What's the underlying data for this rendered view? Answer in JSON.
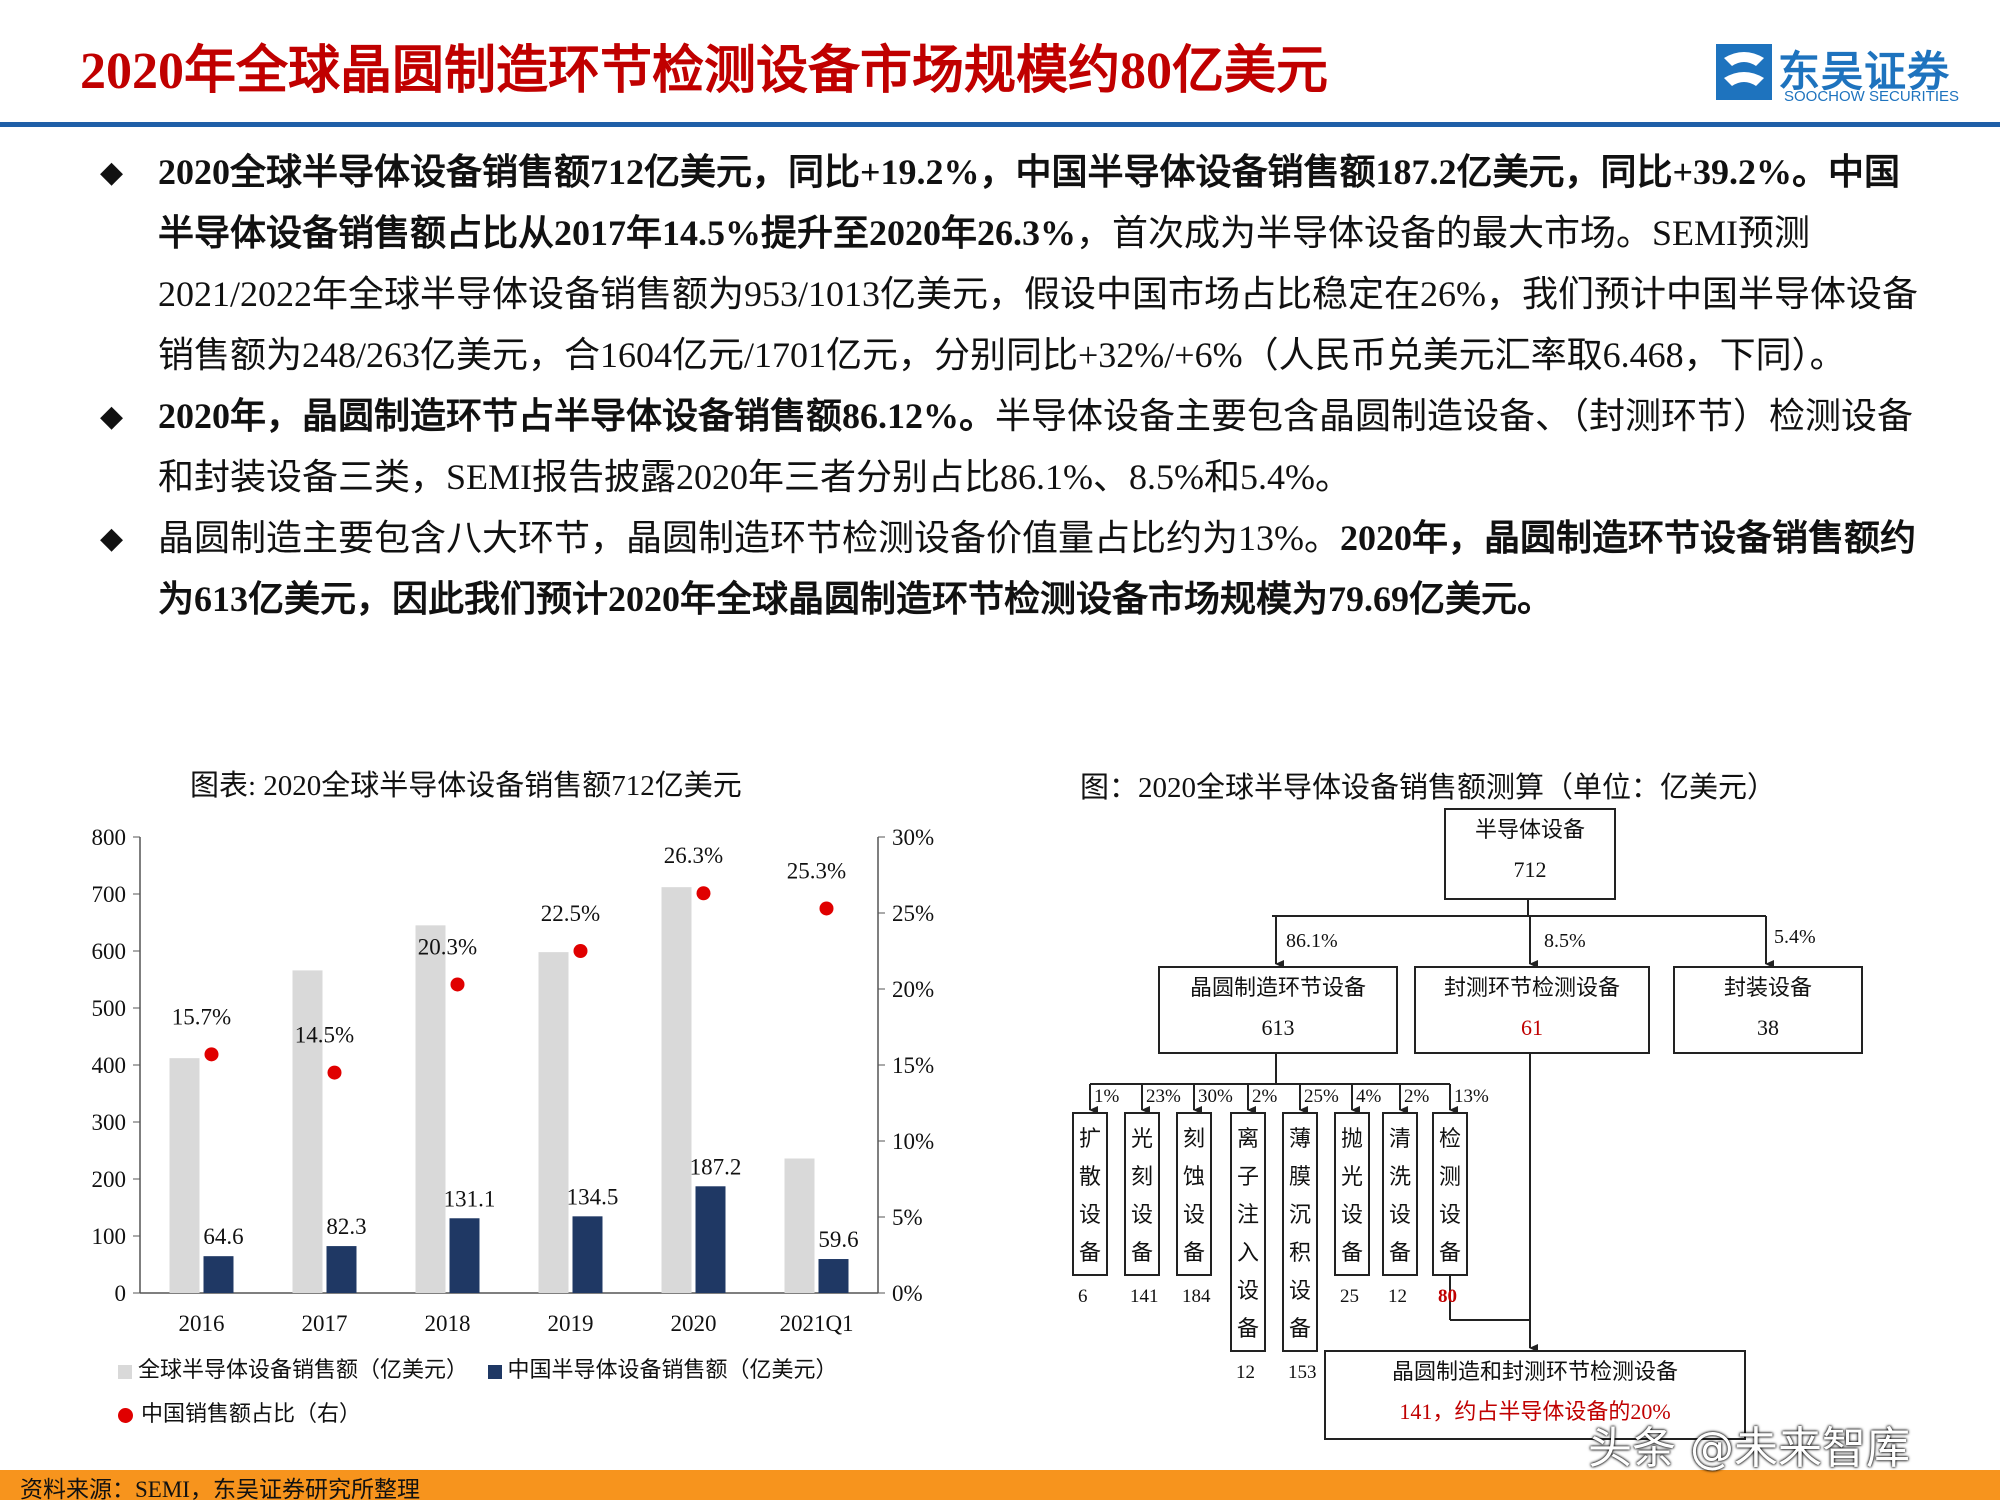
{
  "header": {
    "title": "2020年全球晶圆制造环节检测设备市场规模约80亿美元",
    "logo_cn": "东吴证券",
    "logo_en": "SOOCHOW SECURITIES",
    "logo_mark": "SCS",
    "accent_color": "#1f5fa8",
    "title_color": "#c00000"
  },
  "bullets": [
    {
      "parts": [
        {
          "text": "2020全球半导体设备销售额712亿美元，同比+19.2%，中国半导体设备销售额187.2亿美元，同比+39.2%。中国半导体设备销售额占比从2017年14.5%提升至2020年26.3%",
          "bold": true
        },
        {
          "text": "，首次成为半导体设备的最大市场。SEMI预测2021/2022年全球半导体设备销售额为953/1013亿美元，假设中国市场占比稳定在26%，我们预计中国半导体设备销售额为248/263亿美元，合1604亿元/1701亿元，分别同比+32%/+6%（人民币兑美元汇率取6.468，下同）。",
          "bold": false
        }
      ]
    },
    {
      "parts": [
        {
          "text": "2020年，晶圆制造环节占半导体设备销售额86.12%。",
          "bold": true
        },
        {
          "text": "半导体设备主要包含晶圆制造设备、（封测环节）检测设备和封装设备三类，SEMI报告披露2020年三者分别占比86.1%、8.5%和5.4%。",
          "bold": false
        }
      ]
    },
    {
      "parts": [
        {
          "text": "晶圆制造主要包含八大环节，晶圆制造环节检测设备价值量占比约为13%。",
          "bold": false
        },
        {
          "text": "2020年，晶圆制造环节设备销售额约为613亿美元，因此我们预计2020年全球晶圆制造环节检测设备市场规模为79.69亿美元。",
          "bold": true
        }
      ]
    }
  ],
  "figure1": {
    "title": "图表: 2020全球半导体设备销售额712亿美元",
    "legend": {
      "global": "全球半导体设备销售额（亿美元）",
      "china": "中国半导体设备销售额（亿美元）",
      "share": "中国销售额占比（右）"
    }
  },
  "chart_data": {
    "type": "bar",
    "categories": [
      "2016",
      "2017",
      "2018",
      "2019",
      "2020",
      "2021Q1"
    ],
    "series": [
      {
        "name": "全球半导体设备销售额（亿美元）",
        "type": "bar",
        "values": [
          412,
          566,
          645,
          598,
          712,
          236
        ],
        "color": "#d9d9d9"
      },
      {
        "name": "中国半导体设备销售额（亿美元）",
        "type": "bar",
        "values": [
          64.6,
          82.3,
          131.1,
          134.5,
          187.2,
          59.6
        ],
        "labels": [
          "64.6",
          "82.3",
          "131.1",
          "134.5",
          "187.2",
          "59.6"
        ],
        "color": "#1f3864"
      },
      {
        "name": "中国销售额占比（右）",
        "type": "scatter",
        "axis": "right",
        "values": [
          15.7,
          14.5,
          20.3,
          22.5,
          26.3,
          25.3
        ],
        "labels": [
          "15.7%",
          "14.5%",
          "20.3%",
          "22.5%",
          "26.3%",
          "25.3%"
        ],
        "color": "#e00000"
      }
    ],
    "ylim": [
      0,
      800
    ],
    "yticks": [
      "0",
      "100",
      "200",
      "300",
      "400",
      "500",
      "600",
      "700",
      "800"
    ],
    "y2lim": [
      0,
      30
    ],
    "y2ticks": [
      "0%",
      "5%",
      "10%",
      "15%",
      "20%",
      "25%",
      "30%"
    ],
    "legend_position": "bottom",
    "grid": false
  },
  "figure2": {
    "title": "图：2020全球半导体设备销售额测算（单位：亿美元）",
    "root": {
      "name": "半导体设备",
      "value": "712"
    },
    "level1": [
      {
        "pct": "86.1%",
        "name": "晶圆制造环节设备",
        "value": "613"
      },
      {
        "pct": "8.5%",
        "name": "封测环节检测设备",
        "value": "61"
      },
      {
        "pct": "5.4%",
        "name": "封装设备",
        "value": "38"
      }
    ],
    "level2": [
      {
        "pct": "1%",
        "name": "扩散设备",
        "value": "6"
      },
      {
        "pct": "23%",
        "name": "光刻设备",
        "value": "141"
      },
      {
        "pct": "30%",
        "name": "刻蚀设备",
        "value": "184"
      },
      {
        "pct": "2%",
        "name": "离子注入设备",
        "value": "12"
      },
      {
        "pct": "25%",
        "name": "薄膜沉积设备",
        "value": "153"
      },
      {
        "pct": "4%",
        "name": "抛光设备",
        "value": "25"
      },
      {
        "pct": "2%",
        "name": "清洗设备",
        "value": "12"
      },
      {
        "pct": "13%",
        "name": "检测设备",
        "value": "80"
      }
    ],
    "summary": {
      "name": "晶圆制造和封测环节检测设备",
      "value": "141，约占半导体设备的20%"
    },
    "highlight_color": "#c00000"
  },
  "footer": {
    "source": "资料来源：SEMI，东吴证券研究所整理",
    "color": "#f7941d"
  },
  "watermark": "头条 @未来智库"
}
